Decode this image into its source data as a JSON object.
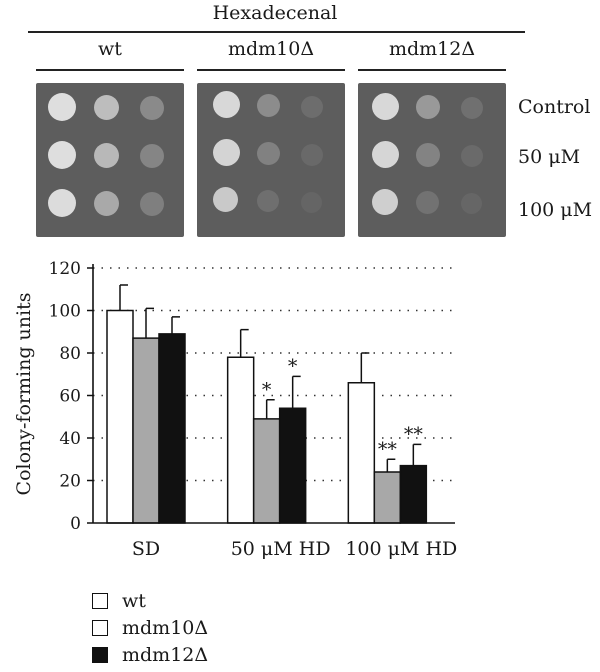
{
  "figure": {
    "header_title": "Hexadecenal",
    "strains": [
      "wt",
      "mdm10Δ",
      "mdm12Δ"
    ],
    "conditions": [
      "Control",
      "50 μM",
      "100 μM"
    ],
    "plate_color": "#5d5d5d",
    "colony_color": "#d9d9d9"
  },
  "chart_data": {
    "type": "bar",
    "categories": [
      "SD",
      "50 μM HD",
      "100 μM HD"
    ],
    "series": [
      {
        "name": "wt",
        "values": [
          100,
          78,
          66
        ],
        "errors": [
          12,
          13,
          14
        ],
        "color": "#ffffff",
        "marks": [
          "",
          "",
          ""
        ]
      },
      {
        "name": "mdm10Δ",
        "values": [
          87,
          49,
          24
        ],
        "errors": [
          14,
          9,
          6
        ],
        "color": "#a8a8a8",
        "marks": [
          "",
          "*",
          "**"
        ]
      },
      {
        "name": "mdm12Δ",
        "values": [
          89,
          54,
          27
        ],
        "errors": [
          8,
          15,
          10
        ],
        "color": "#111111",
        "marks": [
          "",
          "*",
          "**"
        ]
      }
    ],
    "ylabel": "Colony-forming units",
    "xlabel": "",
    "ylim": [
      0,
      120
    ],
    "yticks": [
      0,
      20,
      40,
      60,
      80,
      100,
      120
    ],
    "grid": "dotted horizontal",
    "legend_position": "bottom-left"
  }
}
